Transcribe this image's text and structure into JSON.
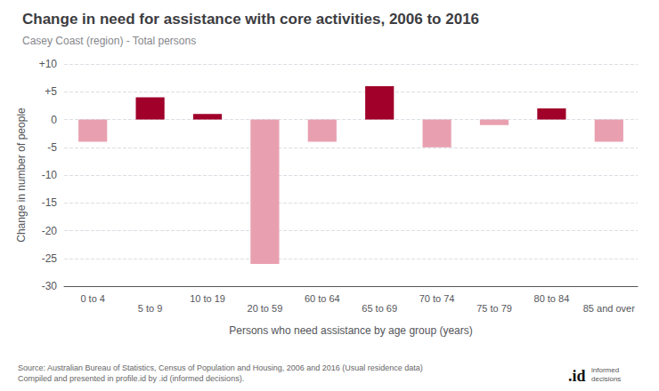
{
  "chart_data": {
    "type": "bar",
    "title": "Change in need for assistance with core activities, 2006 to 2016",
    "subtitle": "Casey Coast (region) - Total persons",
    "xlabel": "Persons who need assistance by age group (years)",
    "ylabel": "Change in number of people",
    "categories": [
      "0 to 4",
      "5 to 9",
      "10 to 19",
      "20 to 59",
      "60 to 64",
      "65 to 69",
      "70 to 74",
      "75 to 79",
      "80 to 84",
      "85 and over"
    ],
    "values": [
      -4,
      4,
      1,
      -26,
      -4,
      6,
      -5,
      -1,
      2,
      -4
    ],
    "colors": [
      "#e8a0b0",
      "#a0002a",
      "#a0002a",
      "#e8a0b0",
      "#e8a0b0",
      "#a0002a",
      "#e8a0b0",
      "#e8a0b0",
      "#a0002a",
      "#e8a0b0"
    ],
    "ylim": [
      -30,
      10
    ],
    "yticks": [
      -30,
      -25,
      -20,
      -15,
      -10,
      -5,
      0,
      {
        "value": 5,
        "label": "+5"
      },
      {
        "value": 10,
        "label": "+10"
      }
    ],
    "grid": true,
    "annotations": [
      "Source: Australian Bureau of Statistics, Census of Population and Housing, 2006 and 2016 (Usual residence data)\nCompiled and presented in profile.id by .id (informed decisions).",
      ".id",
      "informed\ndecisions"
    ]
  }
}
